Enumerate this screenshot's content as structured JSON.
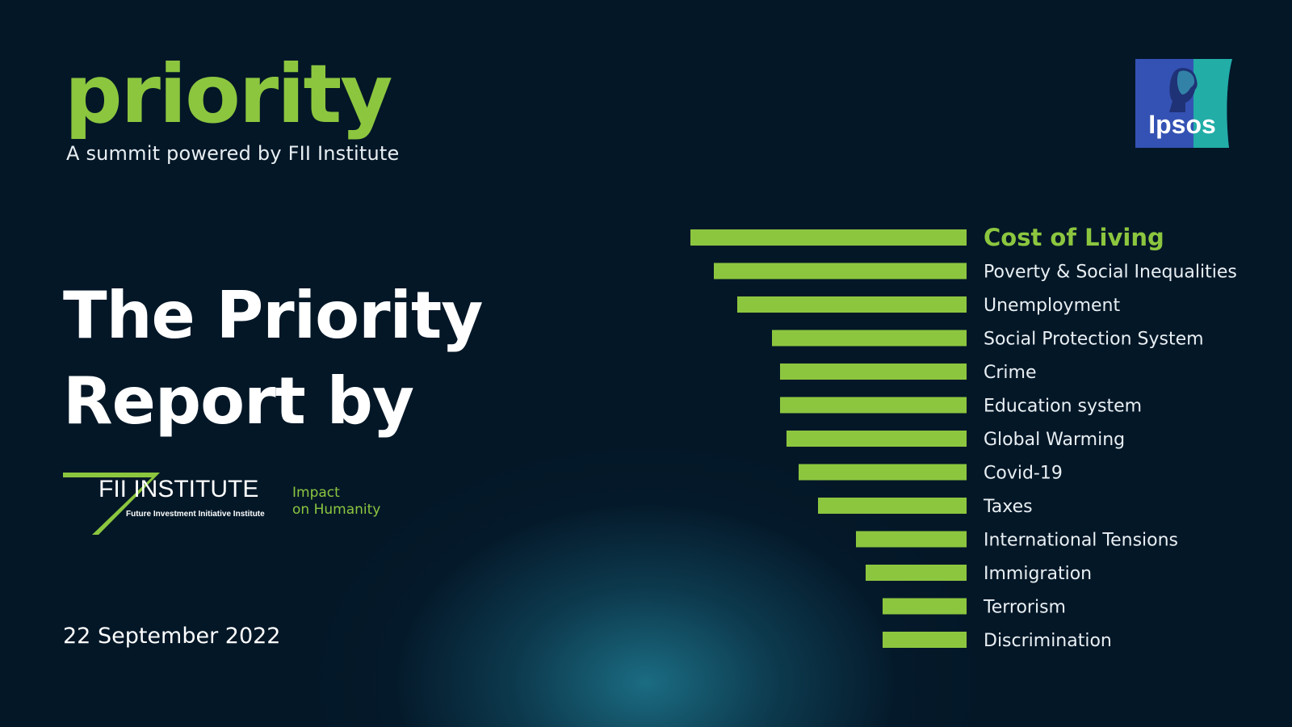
{
  "brand": {
    "name": "priority",
    "subtitle": "A summit powered by FII Institute"
  },
  "ipsos": {
    "logo_text": "Ipsos"
  },
  "title": {
    "line1": "The Priority",
    "line2": "Report by"
  },
  "fii": {
    "logo_main": "FII INSTITUTE",
    "logo_sub": "Future Investment Initiative Institute",
    "tag_line1": "Impact",
    "tag_line2": "on Humanity"
  },
  "date": "22 September 2022",
  "colors": {
    "background": "#031727",
    "accent_green": "#8cc63f",
    "text_white": "#ffffff",
    "ipsos_blue": "#3452b4",
    "ipsos_teal": "#22b2a6"
  },
  "chart_data": {
    "type": "bar",
    "orientation": "horizontal",
    "xlabel": "",
    "ylabel": "",
    "axis_visible": false,
    "grid": false,
    "highlight_category": "Cost of Living",
    "categories": [
      "Cost of Living",
      "Poverty & Social Inequalities",
      "Unemployment",
      "Social Protection System",
      "Crime",
      "Education system",
      "Global Warming",
      "Covid-19",
      "Taxes",
      "International Tensions",
      "Immigration",
      "Terrorism",
      "Discrimination"
    ],
    "values": [
      342,
      313,
      284,
      241,
      231,
      231,
      223,
      208,
      184,
      137,
      125,
      104,
      104
    ],
    "xlim": [
      0,
      342
    ]
  }
}
